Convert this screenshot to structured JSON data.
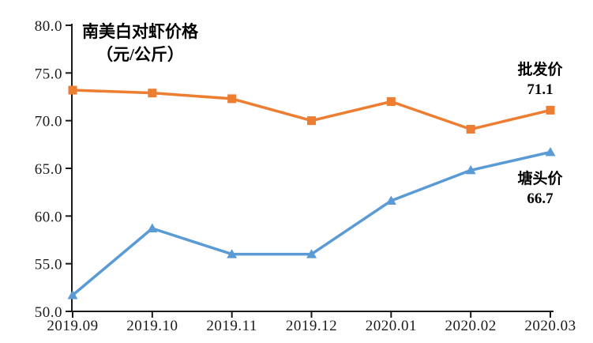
{
  "chart_data": {
    "type": "line",
    "title_line1": "南美白对虾价格",
    "title_line2": "（元/公斤）",
    "categories": [
      "2019.09",
      "2019.10",
      "2019.11",
      "2019.12",
      "2020.01",
      "2020.02",
      "2020.03"
    ],
    "series": [
      {
        "key": "wholesale",
        "name": "批发价",
        "values": [
          73.2,
          72.9,
          72.3,
          70.0,
          72.0,
          69.1,
          71.1
        ],
        "end_label": "71.1",
        "color": "#ED7D31",
        "marker": "square"
      },
      {
        "key": "pondhead",
        "name": "塘头价",
        "values": [
          51.7,
          58.7,
          56.0,
          56.0,
          61.6,
          64.8,
          66.7
        ],
        "end_label": "66.7",
        "color": "#5B9BD5",
        "marker": "triangle-up"
      }
    ],
    "ylim": [
      50.0,
      80.0
    ],
    "y_ticks": [
      80.0,
      75.0,
      70.0,
      65.0,
      60.0,
      55.0,
      50.0
    ],
    "y_tick_decimals": 1,
    "grid": false,
    "legend_position": "end-of-line-labels",
    "axis_color": "#1a1a1a",
    "background_color": "#ffffff"
  }
}
